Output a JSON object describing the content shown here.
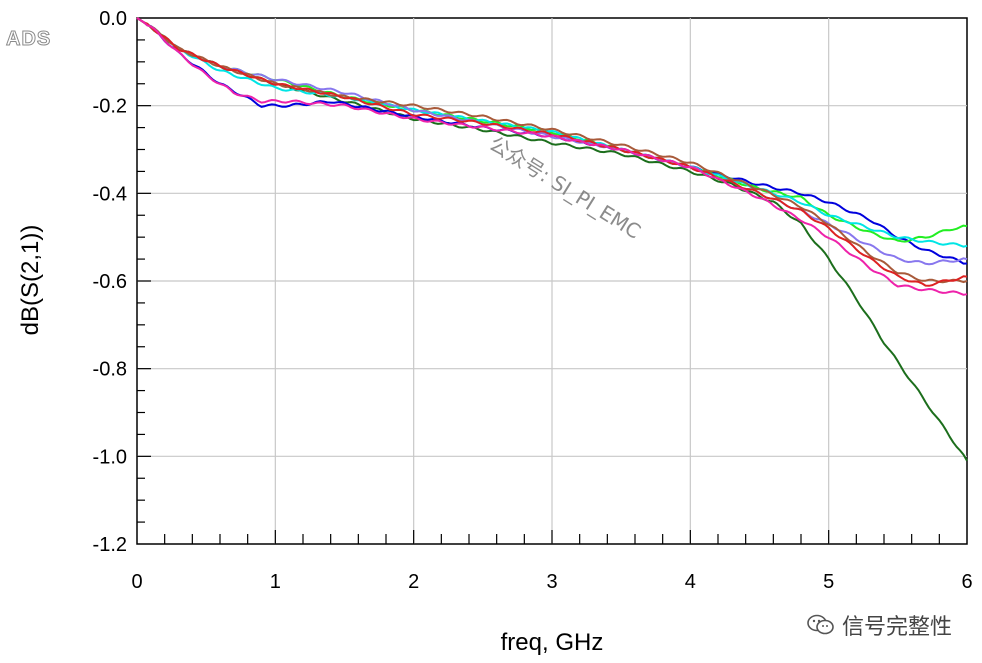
{
  "logo": "ADS",
  "watermark": "公众号: SI_PI_EMC",
  "brand": {
    "icon": "wechat-icon",
    "text": "信号完整性"
  },
  "chart_data": {
    "type": "line",
    "xlabel": "freq, GHz",
    "ylabel": "dB(S(2,1))",
    "xlim": [
      0,
      6
    ],
    "ylim": [
      -1.2,
      0.0
    ],
    "xticks": [
      "0",
      "1",
      "2",
      "3",
      "4",
      "5",
      "6"
    ],
    "yticks": [
      "0.0",
      "-0.2",
      "-0.4",
      "-0.6",
      "-0.8",
      "-1.0",
      "-1.2"
    ],
    "grid": true,
    "series": [
      {
        "color": "#1c6e1c",
        "x": [
          0,
          0.1,
          0.3,
          0.6,
          1.0,
          1.5,
          2.0,
          2.5,
          3.0,
          3.5,
          4.0,
          4.3,
          4.6,
          4.8,
          5.0,
          5.2,
          5.4,
          5.6,
          5.8,
          6.0
        ],
        "y": [
          0,
          -0.02,
          -0.07,
          -0.11,
          -0.15,
          -0.19,
          -0.23,
          -0.255,
          -0.285,
          -0.31,
          -0.35,
          -0.38,
          -0.42,
          -0.47,
          -0.55,
          -0.64,
          -0.74,
          -0.83,
          -0.92,
          -1.01
        ]
      },
      {
        "color": "#0000dd",
        "x": [
          0,
          0.1,
          0.3,
          0.6,
          0.9,
          1.1,
          1.4,
          2.0,
          2.5,
          3.0,
          3.5,
          4.0,
          4.5,
          4.8,
          5.0,
          5.3,
          5.5,
          5.7,
          6.0
        ],
        "y": [
          0,
          -0.02,
          -0.08,
          -0.15,
          -0.2,
          -0.2,
          -0.19,
          -0.225,
          -0.25,
          -0.27,
          -0.3,
          -0.34,
          -0.38,
          -0.4,
          -0.42,
          -0.46,
          -0.5,
          -0.53,
          -0.56
        ]
      },
      {
        "color": "#22ee22",
        "x": [
          0,
          0.1,
          0.3,
          0.6,
          1.0,
          1.5,
          2.0,
          2.5,
          3.0,
          3.5,
          4.0,
          4.5,
          4.8,
          5.0,
          5.3,
          5.5,
          5.7,
          5.9,
          6.0
        ],
        "y": [
          0,
          -0.02,
          -0.07,
          -0.11,
          -0.14,
          -0.18,
          -0.21,
          -0.235,
          -0.26,
          -0.3,
          -0.34,
          -0.39,
          -0.41,
          -0.45,
          -0.49,
          -0.51,
          -0.5,
          -0.48,
          -0.475
        ]
      },
      {
        "color": "#00e5e5",
        "x": [
          0,
          0.1,
          0.3,
          0.6,
          1.0,
          1.5,
          2.0,
          2.5,
          3.0,
          3.5,
          4.0,
          4.5,
          4.8,
          5.0,
          5.3,
          5.5,
          5.7,
          6.0
        ],
        "y": [
          0,
          -0.02,
          -0.07,
          -0.12,
          -0.16,
          -0.18,
          -0.21,
          -0.235,
          -0.26,
          -0.3,
          -0.34,
          -0.39,
          -0.42,
          -0.45,
          -0.48,
          -0.5,
          -0.51,
          -0.52
        ]
      },
      {
        "color": "#8877ee",
        "x": [
          0,
          0.1,
          0.3,
          0.6,
          1.0,
          1.5,
          2.0,
          2.5,
          3.0,
          3.5,
          4.0,
          4.5,
          4.8,
          5.0,
          5.3,
          5.5,
          5.7,
          6.0
        ],
        "y": [
          0,
          -0.02,
          -0.07,
          -0.11,
          -0.14,
          -0.17,
          -0.21,
          -0.24,
          -0.27,
          -0.3,
          -0.34,
          -0.4,
          -0.44,
          -0.47,
          -0.52,
          -0.55,
          -0.56,
          -0.55
        ]
      },
      {
        "color": "#a85a3a",
        "x": [
          0,
          0.1,
          0.3,
          0.6,
          1.0,
          1.5,
          2.0,
          2.5,
          3.0,
          3.5,
          4.0,
          4.5,
          4.8,
          5.0,
          5.3,
          5.5,
          5.7,
          6.0
        ],
        "y": [
          0,
          -0.02,
          -0.07,
          -0.11,
          -0.15,
          -0.18,
          -0.2,
          -0.225,
          -0.255,
          -0.29,
          -0.33,
          -0.39,
          -0.43,
          -0.47,
          -0.54,
          -0.58,
          -0.6,
          -0.6
        ]
      },
      {
        "color": "#dd2222",
        "x": [
          0,
          0.1,
          0.3,
          0.6,
          1.0,
          1.5,
          2.0,
          2.5,
          3.0,
          3.5,
          4.0,
          4.5,
          4.8,
          5.0,
          5.3,
          5.5,
          5.7,
          6.0
        ],
        "y": [
          0,
          -0.02,
          -0.07,
          -0.11,
          -0.15,
          -0.18,
          -0.22,
          -0.24,
          -0.265,
          -0.3,
          -0.34,
          -0.4,
          -0.44,
          -0.48,
          -0.55,
          -0.59,
          -0.61,
          -0.59
        ]
      },
      {
        "color": "#ee22aa",
        "x": [
          0,
          0.1,
          0.3,
          0.5,
          0.7,
          0.9,
          1.1,
          1.5,
          2.0,
          2.5,
          3.0,
          3.5,
          4.0,
          4.5,
          4.8,
          5.0,
          5.3,
          5.5,
          5.7,
          6.0
        ],
        "y": [
          0,
          -0.02,
          -0.08,
          -0.13,
          -0.17,
          -0.19,
          -0.19,
          -0.2,
          -0.23,
          -0.25,
          -0.27,
          -0.3,
          -0.34,
          -0.41,
          -0.46,
          -0.5,
          -0.57,
          -0.61,
          -0.62,
          -0.63
        ]
      }
    ]
  }
}
